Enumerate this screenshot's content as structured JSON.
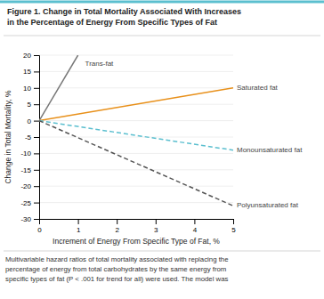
{
  "chart_data": {
    "type": "line",
    "title": "Figure 1. Change in Total Mortality Associated With Increases\nin the Percentage of Energy From Specific Types of Fat",
    "x_label": "Increment of Energy From Specific Type of Fat, %",
    "y_label": "Change in Total Mortality, %",
    "caption": "Multivariable hazard ratios of total mortality associated with replacing the\npercentage of energy from total carbohydrates by the same energy from\nspecific types of fat (P < .001 for trend for all) were used. The model was",
    "xlim": [
      0,
      5
    ],
    "ylim": [
      -30,
      20
    ],
    "xticks": [
      0,
      1,
      2,
      3,
      4,
      5
    ],
    "yticks": [
      -30,
      -25,
      -20,
      -15,
      -10,
      -5,
      0,
      5,
      10,
      15,
      20
    ],
    "grid": true,
    "series": [
      {
        "name": "Trans-fat",
        "color": "#777777",
        "line_style": "solid",
        "x": [
          0,
          1.0
        ],
        "values": [
          0,
          20
        ]
      },
      {
        "name": "Saturated fat",
        "color": "#E8901A",
        "line_style": "solid",
        "x": [
          0,
          5
        ],
        "values": [
          0,
          10
        ]
      },
      {
        "name": "Monounsaturated fat",
        "color": "#5BBFCF",
        "line_style": "dashed",
        "x": [
          0,
          5
        ],
        "values": [
          0,
          -9
        ]
      },
      {
        "name": "Polyunsaturated fat",
        "color": "#555555",
        "line_style": "dashed",
        "x": [
          0,
          5
        ],
        "values": [
          0,
          -26
        ]
      }
    ]
  }
}
